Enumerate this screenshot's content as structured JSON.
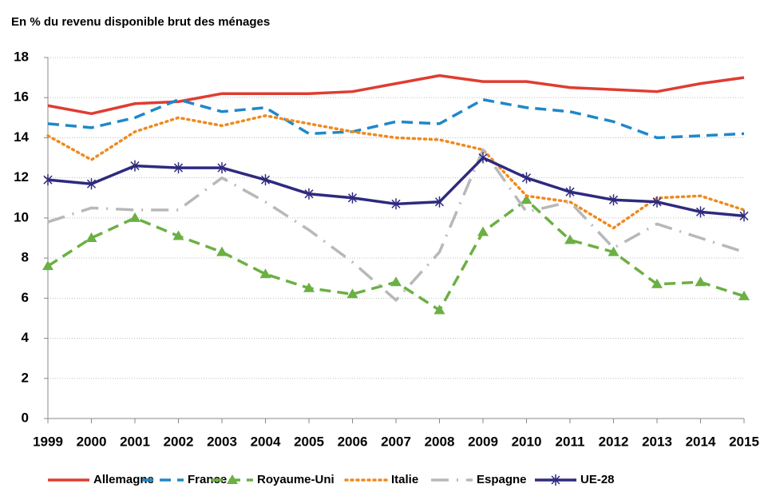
{
  "chart_data": {
    "type": "line",
    "title": "En % du revenu disponible brut des ménages",
    "categories": [
      "1999",
      "2000",
      "2001",
      "2002",
      "2003",
      "2004",
      "2005",
      "2006",
      "2007",
      "2008",
      "2009",
      "2010",
      "2011",
      "2012",
      "2013",
      "2014",
      "2015"
    ],
    "ylim": [
      0,
      18
    ],
    "yticks": [
      0,
      2,
      4,
      6,
      8,
      10,
      12,
      14,
      16,
      18
    ],
    "grid": true,
    "series": [
      {
        "name": "Allemagne",
        "color": "#e03c31",
        "dash": "solid",
        "marker": "none",
        "values": [
          15.6,
          15.2,
          15.7,
          15.8,
          16.2,
          16.2,
          16.2,
          16.3,
          16.7,
          17.1,
          16.8,
          16.8,
          16.5,
          16.4,
          16.3,
          16.7,
          17.0
        ]
      },
      {
        "name": "France",
        "color": "#1f88c8",
        "dash": "dash",
        "marker": "none",
        "values": [
          14.7,
          14.5,
          15.0,
          15.9,
          15.3,
          15.5,
          14.2,
          14.3,
          14.8,
          14.7,
          15.9,
          15.5,
          15.3,
          14.8,
          14.0,
          14.1,
          14.2
        ]
      },
      {
        "name": "Royaume-Uni",
        "color": "#6bb043",
        "dash": "dash",
        "marker": "triangle",
        "values": [
          7.6,
          9.0,
          10.0,
          9.1,
          8.3,
          7.2,
          6.5,
          6.2,
          6.8,
          5.4,
          9.3,
          10.9,
          8.9,
          8.3,
          6.7,
          6.8,
          6.1
        ]
      },
      {
        "name": "Italie",
        "color": "#f0891e",
        "dash": "dot",
        "marker": "none",
        "values": [
          14.1,
          12.9,
          14.3,
          15.0,
          14.6,
          15.1,
          14.7,
          14.3,
          14.0,
          13.9,
          13.4,
          11.1,
          10.8,
          9.5,
          11.0,
          11.1,
          10.4
        ]
      },
      {
        "name": "Espagne",
        "color": "#b8b8b8",
        "dash": "dashdot",
        "marker": "none",
        "values": [
          9.8,
          10.5,
          10.4,
          10.4,
          12.0,
          10.8,
          9.4,
          7.8,
          5.9,
          8.3,
          13.4,
          10.3,
          10.8,
          8.5,
          9.7,
          9.0,
          8.3
        ]
      },
      {
        "name": "UE-28",
        "color": "#2e2a7e",
        "dash": "solid",
        "marker": "star",
        "values": [
          11.9,
          11.7,
          12.6,
          12.5,
          12.5,
          11.9,
          11.2,
          11.0,
          10.7,
          10.8,
          13.0,
          12.0,
          11.3,
          10.9,
          10.8,
          10.3,
          10.1
        ]
      }
    ]
  }
}
